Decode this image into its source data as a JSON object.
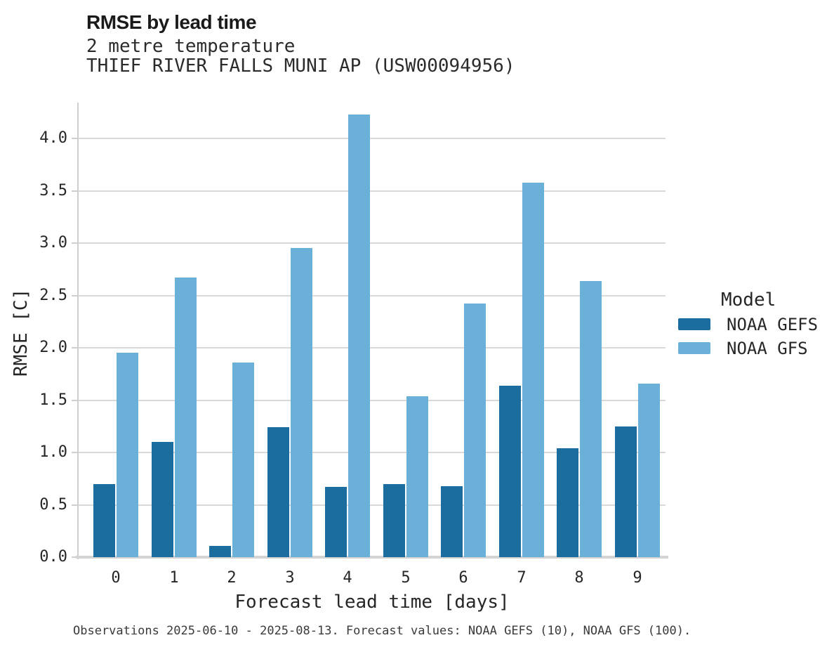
{
  "header": {
    "title": "RMSE by lead time",
    "subtitle": "2 metre temperature",
    "station": "THIEF RIVER FALLS MUNI AP (USW00094956)"
  },
  "chart_data": {
    "type": "bar",
    "title": "RMSE by lead time",
    "subtitle": "2 metre temperature",
    "station": "THIEF RIVER FALLS MUNI AP (USW00094956)",
    "xlabel": "Forecast lead time [days]",
    "ylabel": "RMSE [C]",
    "categories": [
      "0",
      "1",
      "2",
      "3",
      "4",
      "5",
      "6",
      "7",
      "8",
      "9"
    ],
    "series": [
      {
        "name": "NOAA GEFS",
        "color": "#1a6d9e",
        "values": [
          0.7,
          1.1,
          0.11,
          1.24,
          0.67,
          0.7,
          0.68,
          1.64,
          1.04,
          1.25
        ]
      },
      {
        "name": "NOAA GFS",
        "color": "#6ab0d8",
        "values": [
          1.95,
          2.67,
          1.86,
          2.95,
          4.23,
          1.54,
          2.42,
          3.58,
          2.64,
          1.66
        ]
      }
    ],
    "yticks": [
      0.0,
      0.5,
      1.0,
      1.5,
      2.0,
      2.5,
      3.0,
      3.5,
      4.0
    ],
    "ylim": [
      0,
      4.34
    ],
    "grid": "horizontal",
    "legend_position": "right"
  },
  "legend": {
    "title": "Model",
    "entries": [
      {
        "label": "NOAA GEFS",
        "color": "#1a6d9e"
      },
      {
        "label": "NOAA GFS",
        "color": "#6ab0d8"
      }
    ]
  },
  "caption": "Observations 2025-06-10 - 2025-08-13. Forecast values: NOAA GEFS (10), NOAA GFS (100).",
  "colors": {
    "gefs": "#1a6d9e",
    "gfs": "#6ab0d8",
    "gridline": "#d9d9d9",
    "spine": "#cfcfcf",
    "text": "#262626",
    "caption_text": "#3a3a3a"
  }
}
